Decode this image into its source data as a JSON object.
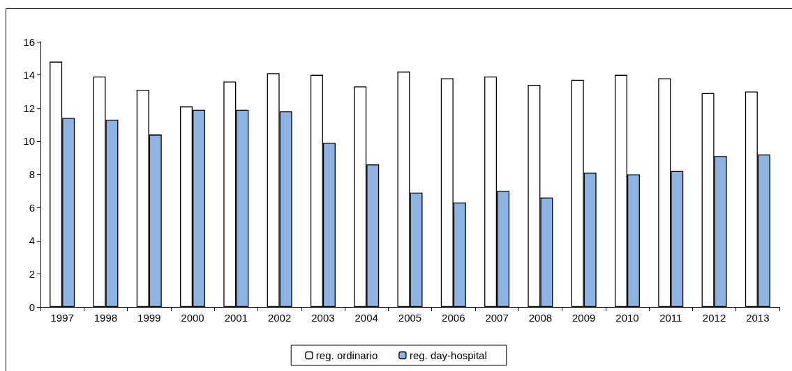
{
  "chart_data": {
    "type": "bar",
    "categories": [
      "1997",
      "1998",
      "1999",
      "2000",
      "2001",
      "2002",
      "2003",
      "2004",
      "2005",
      "2006",
      "2007",
      "2008",
      "2009",
      "2010",
      "2011",
      "2012",
      "2013"
    ],
    "series": [
      {
        "name": "reg. ordinario",
        "color": "#ffffff",
        "values": [
          14.8,
          13.9,
          13.1,
          12.1,
          13.6,
          14.1,
          14.0,
          13.3,
          14.2,
          13.8,
          13.9,
          13.4,
          13.7,
          14.0,
          13.8,
          12.9,
          13.0
        ]
      },
      {
        "name": "reg. day-hospital",
        "color": "#8db3e2",
        "values": [
          11.4,
          11.3,
          10.4,
          11.9,
          11.9,
          11.8,
          9.9,
          8.6,
          6.9,
          6.3,
          7.0,
          6.6,
          8.1,
          8.0,
          8.2,
          9.1,
          9.2
        ]
      }
    ],
    "ylim": [
      0,
      16
    ],
    "yticks": [
      0,
      2,
      4,
      6,
      8,
      10,
      12,
      14,
      16
    ],
    "grid": false,
    "legend": "bottom"
  }
}
